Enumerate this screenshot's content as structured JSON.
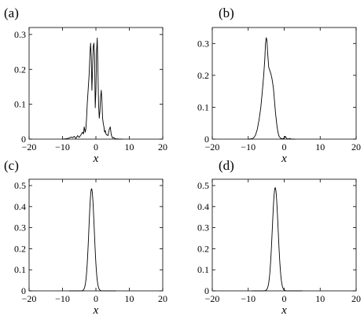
{
  "chart_data": [
    {
      "panel": "(a)",
      "type": "line",
      "xlabel": "x",
      "xlim": [
        -20,
        20
      ],
      "ylim": [
        0,
        0.32
      ],
      "xticks": [
        -20,
        -10,
        0,
        10,
        20
      ],
      "yticks": [
        0,
        0.1,
        0.2,
        0.3
      ],
      "ytick_labels": [
        "0",
        "0.1",
        "0.2",
        "0.3"
      ],
      "series": [
        {
          "x": [
            -10,
            -9,
            -8,
            -7.5,
            -7,
            -6.5,
            -6,
            -5.5,
            -5,
            -4.5,
            -4,
            -3.7,
            -3.5,
            -3.2,
            -3,
            -2.8,
            -2.6,
            -2.4,
            -2.2,
            -2,
            -1.8,
            -1.6,
            -1.4,
            -1.2,
            -1,
            -0.8,
            -0.6,
            -0.4,
            -0.2,
            0,
            0.2,
            0.4,
            0.6,
            0.8,
            1,
            1.2,
            1.4,
            1.6,
            1.8,
            2,
            2.2,
            2.4,
            2.6,
            2.8,
            3,
            3.3,
            3.6,
            4,
            4.3,
            4.6,
            5,
            5.3,
            5.6,
            6,
            7,
            8
          ],
          "y": [
            0,
            0.001,
            0.003,
            0.006,
            0.004,
            0.008,
            0.002,
            0.01,
            0.005,
            0.012,
            0.02,
            0.015,
            0.035,
            0.02,
            0.03,
            0.06,
            0.1,
            0.13,
            0.16,
            0.19,
            0.24,
            0.275,
            0.24,
            0.14,
            0.2,
            0.265,
            0.275,
            0.24,
            0.09,
            0.14,
            0.25,
            0.29,
            0.2,
            0.1,
            0.06,
            0.08,
            0.12,
            0.14,
            0.11,
            0.06,
            0.045,
            0.035,
            0.02,
            0.025,
            0.015,
            0.012,
            0.01,
            0.028,
            0.035,
            0.012,
            0.003,
            0.005,
            0.002,
            0.001,
            0,
            0
          ]
        }
      ]
    },
    {
      "panel": "(b)",
      "type": "line",
      "xlabel": "x",
      "xlim": [
        -20,
        20
      ],
      "ylim": [
        0,
        0.35
      ],
      "xticks": [
        -20,
        -10,
        0,
        10,
        20
      ],
      "yticks": [
        0,
        0.1,
        0.2,
        0.3
      ],
      "ytick_labels": [
        "0",
        "0.1",
        "0.2",
        "0.3"
      ],
      "series": [
        {
          "x": [
            -10,
            -9,
            -8.5,
            -8,
            -7.5,
            -7,
            -6.5,
            -6,
            -5.7,
            -5.4,
            -5.2,
            -5,
            -4.8,
            -4.6,
            -4.3,
            -4,
            -3.7,
            -3.4,
            -3,
            -2.7,
            -2.4,
            -2,
            -1.7,
            -1.4,
            -1,
            -0.5,
            0,
            0.3,
            0.6,
            1,
            1.5,
            2,
            3
          ],
          "y": [
            0,
            0.001,
            0.004,
            0.012,
            0.03,
            0.06,
            0.1,
            0.16,
            0.2,
            0.25,
            0.3,
            0.318,
            0.31,
            0.27,
            0.225,
            0.215,
            0.205,
            0.19,
            0.16,
            0.12,
            0.08,
            0.04,
            0.02,
            0.008,
            0.003,
            0.001,
            0.003,
            0.009,
            0.003,
            0,
            0.002,
            0,
            0
          ]
        }
      ]
    },
    {
      "panel": "(c)",
      "type": "line",
      "xlabel": "x",
      "xlim": [
        -20,
        20
      ],
      "ylim": [
        0,
        0.53
      ],
      "xticks": [
        -20,
        -10,
        0,
        10,
        20
      ],
      "yticks": [
        0,
        0.1,
        0.2,
        0.3,
        0.4,
        0.5
      ],
      "ytick_labels": [
        "0",
        "0.1",
        "0.2",
        "0.3",
        "0.4",
        "0.5"
      ],
      "series": {
        "type": "gaussian",
        "center": -1.3,
        "peak": 0.485,
        "sigma": 0.8,
        "x_range": [
          -8,
          6
        ]
      }
    },
    {
      "panel": "(d)",
      "type": "line",
      "xlabel": "x",
      "xlim": [
        -20,
        20
      ],
      "ylim": [
        0,
        0.53
      ],
      "xticks": [
        -20,
        -10,
        0,
        10,
        20
      ],
      "yticks": [
        0,
        0.1,
        0.2,
        0.3,
        0.4,
        0.5
      ],
      "ytick_labels": [
        "0",
        "0.1",
        "0.2",
        "0.3",
        "0.4",
        "0.5"
      ],
      "series": {
        "type": "gaussian",
        "center": -2.5,
        "peak": 0.49,
        "sigma": 0.8,
        "x_range": [
          -9,
          5
        ]
      }
    }
  ]
}
